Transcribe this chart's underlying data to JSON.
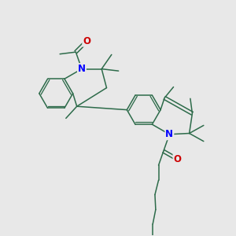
{
  "bg_color": "#e8e8e8",
  "bond_color": "#2d6b4a",
  "N_color": "#0000ff",
  "O_color": "#cc0000",
  "bond_width": 1.1,
  "fig_width": 3.0,
  "fig_height": 3.0,
  "dpi": 100,
  "xlim": [
    0,
    10
  ],
  "ylim": [
    0,
    10
  ]
}
